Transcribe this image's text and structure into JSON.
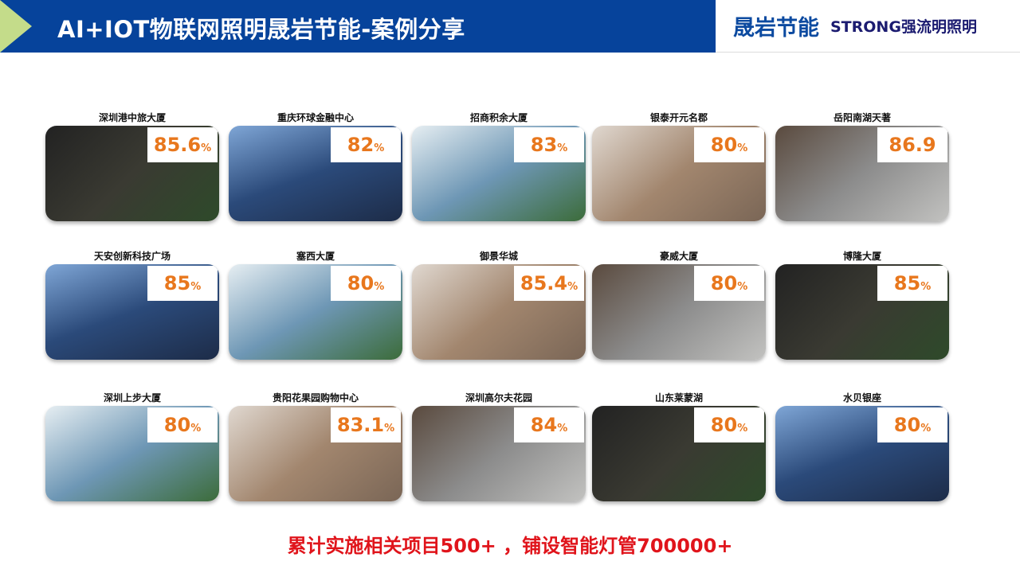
{
  "header": {
    "title": "AI+IOT物联网照明晟岩节能-案例分享"
  },
  "logo": {
    "cn": "晟岩节能",
    "en": "STRONG",
    "en_cn": "强流明照明"
  },
  "cases": [
    {
      "name": "深圳港中旅大厦",
      "value": "85.6",
      "unit": "%"
    },
    {
      "name": "重庆环球金融中心",
      "value": "82",
      "unit": "%"
    },
    {
      "name": "招商积余大厦",
      "value": "83",
      "unit": "%"
    },
    {
      "name": "银泰开元名郡",
      "value": "80",
      "unit": "%"
    },
    {
      "name": "岳阳南湖天著",
      "value": "86.9",
      "unit": ""
    },
    {
      "name": "天安创新科技广场",
      "value": "85",
      "unit": "%"
    },
    {
      "name": "塞西大厦",
      "value": "80",
      "unit": "%"
    },
    {
      "name": "御景华城",
      "value": "85.4",
      "unit": "%"
    },
    {
      "name": "豪威大厦",
      "value": "80",
      "unit": "%"
    },
    {
      "name": "博隆大厦",
      "value": "85",
      "unit": "%"
    },
    {
      "name": "深圳上步大厦",
      "value": "80",
      "unit": "%"
    },
    {
      "name": "贵阳花果园购物中心",
      "value": "83.1",
      "unit": "%"
    },
    {
      "name": "深圳高尔夫花园",
      "value": "84",
      "unit": "%"
    },
    {
      "name": "山东莱蒙湖",
      "value": "80",
      "unit": "%"
    },
    {
      "name": "水贝银座",
      "value": "80",
      "unit": "%"
    }
  ],
  "footer": "累计实施相关项目500+ ，铺设智能灯管700000+",
  "colors": {
    "header": "#06439b",
    "accent": "#e8771d",
    "footer": "#e0141b"
  }
}
